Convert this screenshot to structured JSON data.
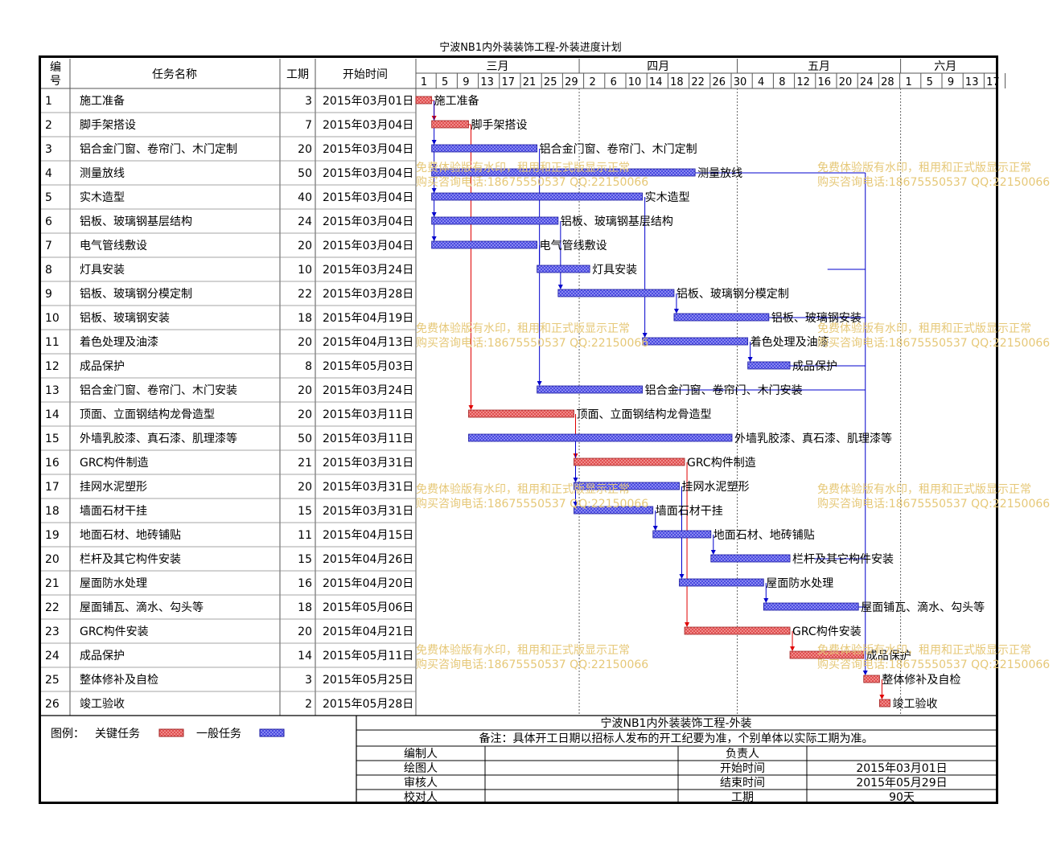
{
  "title": "宁波NB1内外装装饰工程-外装进度计划",
  "header": {
    "num": "编号",
    "name": "任务名称",
    "dur": "工期",
    "start": "开始时间"
  },
  "months": [
    "三月",
    "四月",
    "五月",
    "六月"
  ],
  "day_ticks": [
    "1",
    "5",
    "9",
    "13",
    "17",
    "21",
    "25",
    "29",
    "2",
    "6",
    "10",
    "14",
    "18",
    "22",
    "26",
    "30",
    "4",
    "8",
    "12",
    "16",
    "20",
    "24",
    "28",
    "1",
    "5",
    "9",
    "13",
    "17"
  ],
  "legend": {
    "label": "图例：",
    "critical": "关键任务",
    "normal": "一般任务"
  },
  "footer": {
    "project": "宁波NB1内外装装饰工程-外装",
    "note": "备注：具体开工日期以招标人发布的开工纪要为准，个别单体以实际工期为准。",
    "rows": [
      {
        "l": "编制人",
        "lv": "",
        "r": "负责人",
        "rv": ""
      },
      {
        "l": "绘图人",
        "lv": "",
        "r": "开始时间",
        "rv": "2015年03月01日"
      },
      {
        "l": "审核人",
        "lv": "",
        "r": "结束时间",
        "rv": "2015年05月29日"
      },
      {
        "l": "校对人",
        "lv": "",
        "r": "工期",
        "rv": "90天"
      }
    ]
  },
  "watermark": {
    "line1": "免费体验版有水印，租用和正式版显示正常",
    "line2": "购买咨询电话:18675550537 QQ:22150066"
  },
  "colors": {
    "critical": "#e05050",
    "normal": "#4a4ae0",
    "link_normal": "#0000cc",
    "link_critical": "#e00000",
    "watermark": "#e6c878"
  },
  "chart_data": {
    "type": "gantt",
    "title": "宁波NB1内外装装饰工程-外装进度计划",
    "x_axis": {
      "start": "2015-03-01",
      "end": "2015-06-19",
      "months": [
        "三月",
        "四月",
        "五月",
        "六月"
      ]
    },
    "tasks": [
      {
        "id": 1,
        "name": "施工准备",
        "duration": 3,
        "start": "2015年03月01日",
        "start_day": 0,
        "critical": true
      },
      {
        "id": 2,
        "name": "脚手架搭设",
        "duration": 7,
        "start": "2015年03月04日",
        "start_day": 3,
        "critical": true
      },
      {
        "id": 3,
        "name": "铝合金门窗、卷帘门、木门定制",
        "duration": 20,
        "start": "2015年03月04日",
        "start_day": 3,
        "critical": false
      },
      {
        "id": 4,
        "name": "测量放线",
        "duration": 50,
        "start": "2015年03月04日",
        "start_day": 3,
        "critical": false
      },
      {
        "id": 5,
        "name": "实木造型",
        "duration": 40,
        "start": "2015年03月04日",
        "start_day": 3,
        "critical": false
      },
      {
        "id": 6,
        "name": "铝板、玻璃钢基层结构",
        "duration": 24,
        "start": "2015年03月04日",
        "start_day": 3,
        "critical": false
      },
      {
        "id": 7,
        "name": "电气管线敷设",
        "duration": 20,
        "start": "2015年03月04日",
        "start_day": 3,
        "critical": false
      },
      {
        "id": 8,
        "name": "灯具安装",
        "duration": 10,
        "start": "2015年03月24日",
        "start_day": 23,
        "critical": false
      },
      {
        "id": 9,
        "name": "铝板、玻璃钢分模定制",
        "duration": 22,
        "start": "2015年03月28日",
        "start_day": 27,
        "critical": false
      },
      {
        "id": 10,
        "name": "铝板、玻璃钢安装",
        "duration": 18,
        "start": "2015年04月19日",
        "start_day": 49,
        "critical": false
      },
      {
        "id": 11,
        "name": "着色处理及油漆",
        "duration": 20,
        "start": "2015年04月13日",
        "start_day": 43,
        "critical": false
      },
      {
        "id": 12,
        "name": "成品保护",
        "duration": 8,
        "start": "2015年05月03日",
        "start_day": 63,
        "critical": false
      },
      {
        "id": 13,
        "name": "铝合金门窗、卷帘门、木门安装",
        "duration": 20,
        "start": "2015年03月24日",
        "start_day": 23,
        "critical": false
      },
      {
        "id": 14,
        "name": "顶面、立面钢结构龙骨造型",
        "duration": 20,
        "start": "2015年03月11日",
        "start_day": 10,
        "critical": true
      },
      {
        "id": 15,
        "name": "外墙乳胶漆、真石漆、肌理漆等",
        "duration": 50,
        "start": "2015年03月11日",
        "start_day": 10,
        "critical": false
      },
      {
        "id": 16,
        "name": "GRC构件制造",
        "duration": 21,
        "start": "2015年03月31日",
        "start_day": 30,
        "critical": true
      },
      {
        "id": 17,
        "name": "挂网水泥塑形",
        "duration": 20,
        "start": "2015年03月31日",
        "start_day": 30,
        "critical": false
      },
      {
        "id": 18,
        "name": "墙面石材干挂",
        "duration": 15,
        "start": "2015年03月31日",
        "start_day": 30,
        "critical": false
      },
      {
        "id": 19,
        "name": "地面石材、地砖铺贴",
        "duration": 11,
        "start": "2015年04月15日",
        "start_day": 45,
        "critical": false
      },
      {
        "id": 20,
        "name": "栏杆及其它构件安装",
        "duration": 15,
        "start": "2015年04月26日",
        "start_day": 56,
        "critical": false
      },
      {
        "id": 21,
        "name": "屋面防水处理",
        "duration": 16,
        "start": "2015年04月20日",
        "start_day": 50,
        "critical": false
      },
      {
        "id": 22,
        "name": "屋面铺瓦、滴水、勾头等",
        "duration": 18,
        "start": "2015年05月06日",
        "start_day": 66,
        "critical": false
      },
      {
        "id": 23,
        "name": "GRC构件安装",
        "duration": 20,
        "start": "2015年04月21日",
        "start_day": 51,
        "critical": true
      },
      {
        "id": 24,
        "name": "成品保护",
        "duration": 14,
        "start": "2015年05月11日",
        "start_day": 71,
        "critical": true
      },
      {
        "id": 25,
        "name": "整体修补及自检",
        "duration": 3,
        "start": "2015年05月25日",
        "start_day": 85,
        "critical": true
      },
      {
        "id": 26,
        "name": "竣工验收",
        "duration": 2,
        "start": "2015年05月28日",
        "start_day": 88,
        "critical": true
      }
    ]
  }
}
